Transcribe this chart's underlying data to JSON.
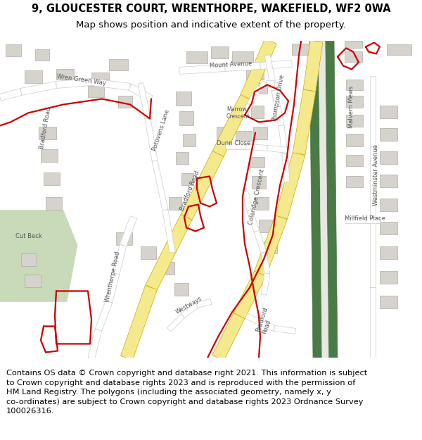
{
  "title": "9, GLOUCESTER COURT, WRENTHORPE, WAKEFIELD, WF2 0WA",
  "subtitle": "Map shows position and indicative extent of the property.",
  "footer_line1": "Contains OS data © Crown copyright and database right 2021. This information is subject to Crown copyright and database rights 2023 and is reproduced with the permission of",
  "footer_line2": "HM Land Registry. The polygons (including the associated geometry, namely x, y co-ordinates) are subject to Crown copyright and database rights 2023 Ordnance Survey 100026316.",
  "map_bg": "#f2f0eb",
  "building_color": "#d6d3cc",
  "building_edge": "#b0aca4",
  "road_yellow_fill": "#f5e98e",
  "road_yellow_edge": "#c8aa00",
  "road_white_fill": "#ffffff",
  "road_white_edge": "#cccccc",
  "green_park": "#c8dab8",
  "green_canal1": "#4a7a45",
  "green_canal2": "#4a7a45",
  "red_line": "#cc0000",
  "red_lw": 1.6,
  "figwidth": 6.0,
  "figheight": 6.25,
  "dpi": 100,
  "title_fontsize": 10.5,
  "subtitle_fontsize": 9.5,
  "footer_fontsize": 8.2,
  "label_fontsize": 6.0,
  "label_color": "#555555"
}
